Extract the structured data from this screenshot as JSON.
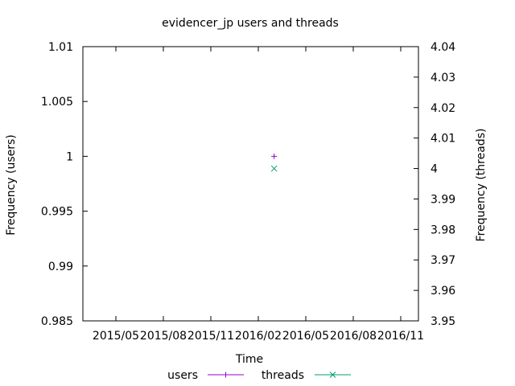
{
  "chart_data": {
    "type": "scatter",
    "title": "evidencer_jp users and threads",
    "xlabel": "Time",
    "ylabel": "Frequency (users)",
    "y2label": "Frequency (threads)",
    "x_ticks": [
      "2015/05",
      "2015/08",
      "2015/11",
      "2016/02",
      "2016/05",
      "2016/08",
      "2016/11"
    ],
    "ylim": [
      0.985,
      1.01
    ],
    "y_ticks": [
      "0.985",
      "0.99",
      "0.995",
      "1",
      "1.005",
      "1.01"
    ],
    "y2lim": [
      3.95,
      4.04
    ],
    "y2_ticks": [
      "3.95",
      "3.96",
      "3.97",
      "3.98",
      "3.99",
      "4",
      "4.01",
      "4.02",
      "4.03",
      "4.04"
    ],
    "grid": false,
    "legend_position": "bottom-center",
    "series": [
      {
        "name": "users",
        "axis": "left",
        "marker": "plus",
        "color": "#9400d3",
        "points": [
          {
            "x": "2016/03",
            "y": 1
          }
        ]
      },
      {
        "name": "threads",
        "axis": "right",
        "marker": "cross",
        "color": "#009e73",
        "points": [
          {
            "x": "2016/03",
            "y": 4
          }
        ]
      }
    ]
  }
}
